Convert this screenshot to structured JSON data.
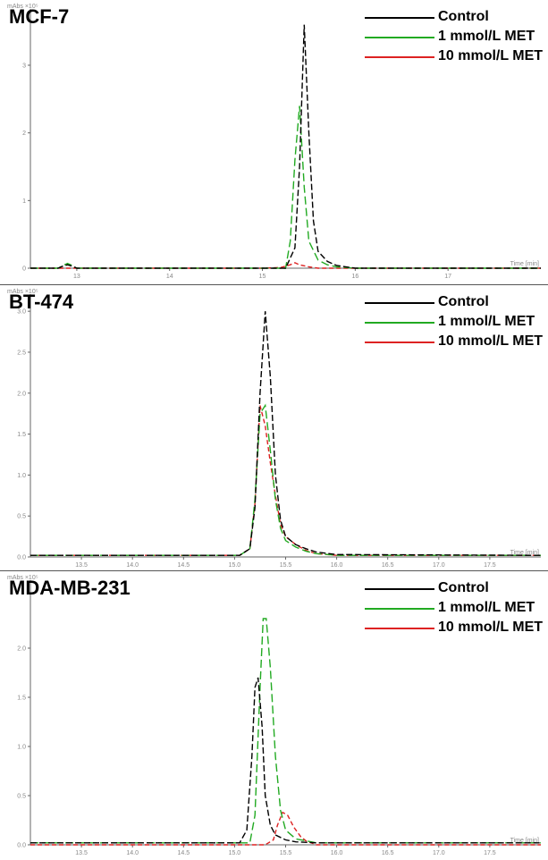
{
  "chart_data": [
    {
      "type": "line",
      "title": "MCF-7",
      "ylabel": "mAbs ×10⁵",
      "xlabel": "Time [min]",
      "xlim": [
        12.5,
        18.0
      ],
      "ylim": [
        0,
        3.7
      ],
      "xticks": [
        "13",
        "14",
        "15",
        "16",
        "17"
      ],
      "yticks": [
        "0",
        "1",
        "2",
        "3"
      ],
      "series": [
        {
          "name": "Control",
          "color": "#000000",
          "x": [
            12.5,
            12.8,
            12.85,
            12.9,
            12.95,
            13.0,
            15.0,
            15.25,
            15.35,
            15.4,
            15.45,
            15.5,
            15.55,
            15.6,
            15.7,
            15.8,
            16.0,
            16.5,
            18.0
          ],
          "y": [
            0,
            0,
            0.03,
            0.05,
            0.03,
            0,
            0,
            0,
            0.3,
            1.5,
            3.6,
            2.0,
            0.7,
            0.25,
            0.1,
            0.04,
            0,
            0,
            0
          ]
        },
        {
          "name": "1 mmol/L MET",
          "color": "#22aa22",
          "x": [
            12.5,
            12.8,
            12.85,
            12.9,
            12.95,
            13.0,
            15.0,
            15.25,
            15.3,
            15.35,
            15.4,
            15.45,
            15.5,
            15.6,
            15.7,
            15.8,
            16.0,
            18.0
          ],
          "y": [
            0,
            0,
            0.04,
            0.07,
            0.04,
            0,
            0,
            0,
            0.4,
            1.6,
            2.4,
            1.2,
            0.4,
            0.12,
            0.05,
            0.02,
            0,
            0
          ]
        },
        {
          "name": "10 mmol/L MET",
          "color": "#dd2222",
          "x": [
            12.5,
            15.0,
            15.2,
            15.3,
            15.35,
            15.4,
            15.5,
            15.6,
            18.0
          ],
          "y": [
            0,
            0,
            0.01,
            0.05,
            0.08,
            0.05,
            0.02,
            0,
            0
          ]
        }
      ]
    },
    {
      "type": "line",
      "title": "BT-474",
      "ylabel": "mAbs ×10⁵",
      "xlabel": "Time [min]",
      "xlim": [
        13.0,
        18.0
      ],
      "ylim": [
        0,
        3.1
      ],
      "xticks": [
        "13.5",
        "14.0",
        "14.5",
        "15.0",
        "15.5",
        "16.0",
        "16.5",
        "17.0",
        "17.5"
      ],
      "yticks": [
        "0.0",
        "0.5",
        "1.0",
        "1.5",
        "2.0",
        "2.5",
        "3.0"
      ],
      "series": [
        {
          "name": "Control",
          "color": "#000000",
          "x": [
            13.0,
            15.05,
            15.15,
            15.2,
            15.25,
            15.3,
            15.35,
            15.4,
            15.45,
            15.5,
            15.6,
            15.7,
            15.8,
            16.0,
            18.0
          ],
          "y": [
            0.02,
            0.02,
            0.1,
            0.6,
            2.0,
            3.0,
            2.2,
            1.0,
            0.45,
            0.25,
            0.15,
            0.1,
            0.06,
            0.03,
            0.02
          ]
        },
        {
          "name": "1 mmol/L MET",
          "color": "#22aa22",
          "x": [
            13.0,
            15.05,
            15.15,
            15.2,
            15.25,
            15.3,
            15.35,
            15.4,
            15.45,
            15.5,
            15.6,
            15.7,
            15.8,
            16.0,
            18.0
          ],
          "y": [
            0.02,
            0.02,
            0.1,
            0.7,
            1.75,
            1.85,
            1.3,
            0.7,
            0.35,
            0.2,
            0.12,
            0.07,
            0.04,
            0.02,
            0.02
          ]
        },
        {
          "name": "10 mmol/L MET",
          "color": "#dd2222",
          "x": [
            13.0,
            15.05,
            15.15,
            15.2,
            15.25,
            15.3,
            15.35,
            15.4,
            15.45,
            15.5,
            15.6,
            15.7,
            15.8,
            16.0,
            18.0
          ],
          "y": [
            0.02,
            0.02,
            0.1,
            0.65,
            1.85,
            1.6,
            1.15,
            0.75,
            0.4,
            0.25,
            0.15,
            0.08,
            0.04,
            0.02,
            0.02
          ]
        }
      ]
    },
    {
      "type": "line",
      "title": "MDA-MB-231",
      "ylabel": "mAbs ×10⁵",
      "xlabel": "Time [min]",
      "xlim": [
        13.0,
        18.0
      ],
      "ylim": [
        0,
        2.6
      ],
      "xticks": [
        "13.5",
        "14.0",
        "14.5",
        "15.0",
        "15.5",
        "16.0",
        "16.5",
        "17.0",
        "17.5"
      ],
      "yticks": [
        "0.0",
        "0.5",
        "1.0",
        "1.5",
        "2.0"
      ],
      "series": [
        {
          "name": "Control",
          "color": "#000000",
          "x": [
            13.0,
            15.05,
            15.12,
            15.17,
            15.2,
            15.23,
            15.27,
            15.3,
            15.35,
            15.4,
            15.5,
            15.6,
            15.8,
            18.0
          ],
          "y": [
            0.02,
            0.02,
            0.15,
            0.9,
            1.6,
            1.7,
            1.2,
            0.5,
            0.2,
            0.1,
            0.05,
            0.03,
            0.02,
            0.02
          ]
        },
        {
          "name": "1 mmol/L MET",
          "color": "#22aa22",
          "x": [
            13.0,
            15.15,
            15.2,
            15.25,
            15.28,
            15.31,
            15.35,
            15.4,
            15.45,
            15.5,
            15.6,
            15.7,
            15.8,
            16.0,
            18.0
          ],
          "y": [
            0.02,
            0.02,
            0.3,
            1.6,
            2.3,
            2.3,
            1.8,
            0.9,
            0.35,
            0.15,
            0.06,
            0.04,
            0.02,
            0.02,
            0.02
          ]
        },
        {
          "name": "10 mmol/L MET",
          "color": "#dd2222",
          "x": [
            13.0,
            15.3,
            15.38,
            15.42,
            15.47,
            15.52,
            15.58,
            15.65,
            15.7,
            15.8,
            16.0,
            18.0
          ],
          "y": [
            0.0,
            0.0,
            0.05,
            0.2,
            0.33,
            0.3,
            0.18,
            0.08,
            0.04,
            0.0,
            0.0,
            0.0
          ]
        }
      ]
    }
  ]
}
